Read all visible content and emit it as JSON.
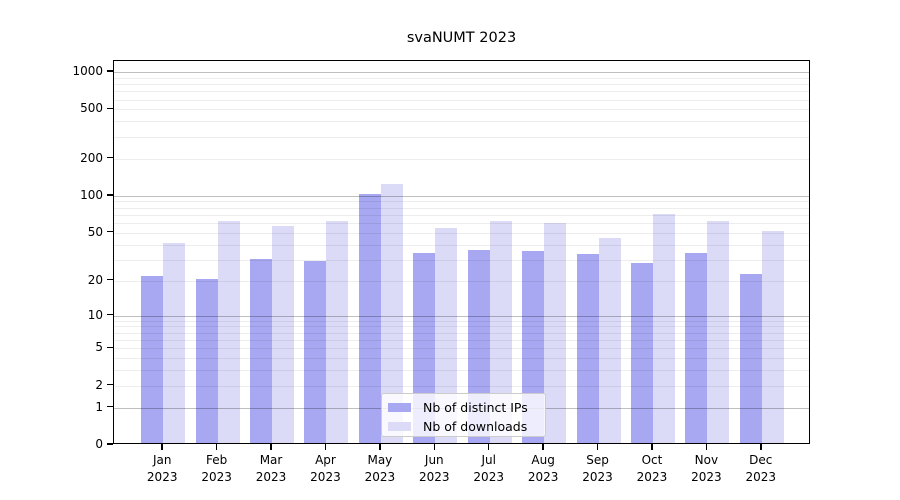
{
  "title": "svaNUMT 2023",
  "legend": {
    "items": [
      {
        "label": "Nb of distinct IPs",
        "color": "#a7a7f2"
      },
      {
        "label": "Nb of downloads",
        "color": "#dbdbf7"
      }
    ]
  },
  "axes": {
    "y_tick_labels": [
      "0",
      "1",
      "2",
      "5",
      "10",
      "20",
      "50",
      "100",
      "200",
      "500",
      "1000"
    ],
    "x_tick_labels_line2": "2023"
  },
  "chart_data": {
    "type": "bar",
    "title": "svaNUMT 2023",
    "categories": [
      "Jan 2023",
      "Feb 2023",
      "Mar 2023",
      "Apr 2023",
      "May 2023",
      "Jun 2023",
      "Jul 2023",
      "Aug 2023",
      "Sep 2023",
      "Oct 2023",
      "Nov 2023",
      "Dec 2023"
    ],
    "series": [
      {
        "name": "Nb of distinct IPs",
        "color": "#a7a7f2",
        "values": [
          21,
          20,
          29,
          28,
          100,
          33,
          35,
          34,
          32,
          27,
          33,
          22
        ]
      },
      {
        "name": "Nb of downloads",
        "color": "#dbdbf7",
        "values": [
          40,
          60,
          55,
          60,
          120,
          53,
          60,
          58,
          44,
          68,
          60,
          50
        ]
      }
    ],
    "yscale": "log1p",
    "yticks": [
      0,
      1,
      2,
      5,
      10,
      20,
      50,
      100,
      200,
      500,
      1000
    ],
    "ylim": [
      0,
      1230
    ],
    "grid": "horizontal; major lines at 1,10,100,1000; minor at 2-9 of each decade",
    "legend_position": "inside lower-center"
  }
}
